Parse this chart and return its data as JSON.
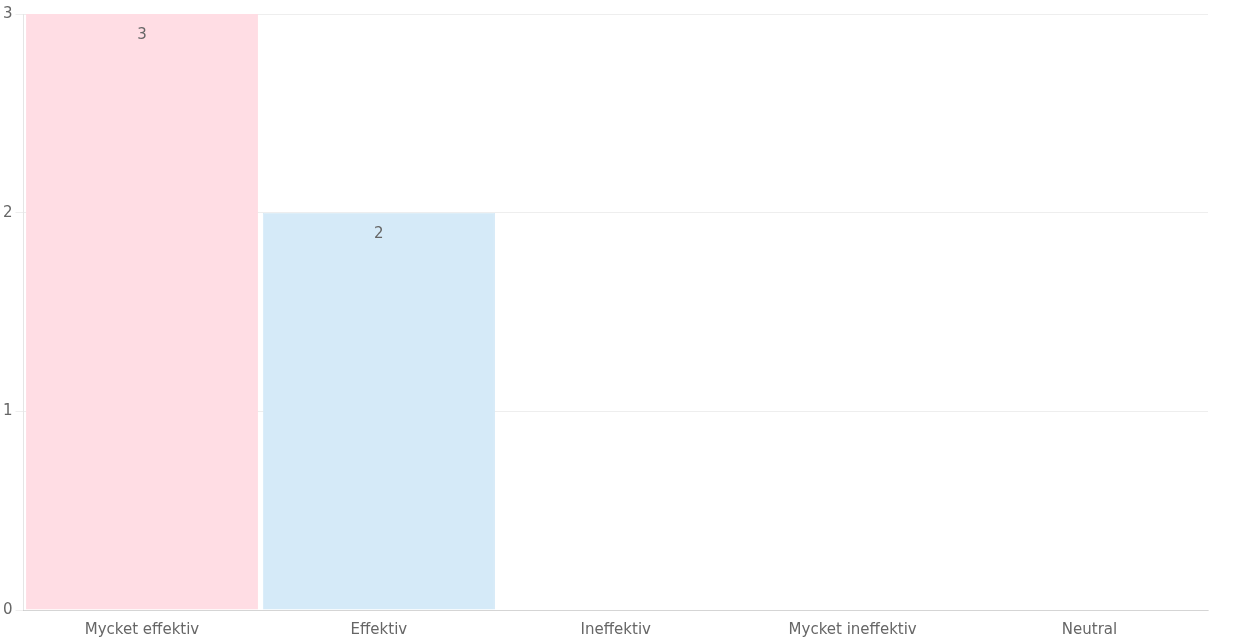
{
  "chart_data": {
    "type": "bar",
    "categories": [
      "Mycket effektiv",
      "Effektiv",
      "Ineffektiv",
      "Mycket ineffektiv",
      "Neutral"
    ],
    "values": [
      3,
      2,
      0,
      0,
      0
    ],
    "colors": [
      "#ffdde4",
      "#d5eaf8",
      "#ffecd9",
      "#dbf2f2",
      "#ebe0ff"
    ],
    "value_labels": [
      "3",
      "2",
      null,
      null,
      null
    ],
    "ylim": [
      0,
      3
    ],
    "yticks": [
      0,
      1,
      2,
      3
    ],
    "grid": "y",
    "legend": false
  }
}
